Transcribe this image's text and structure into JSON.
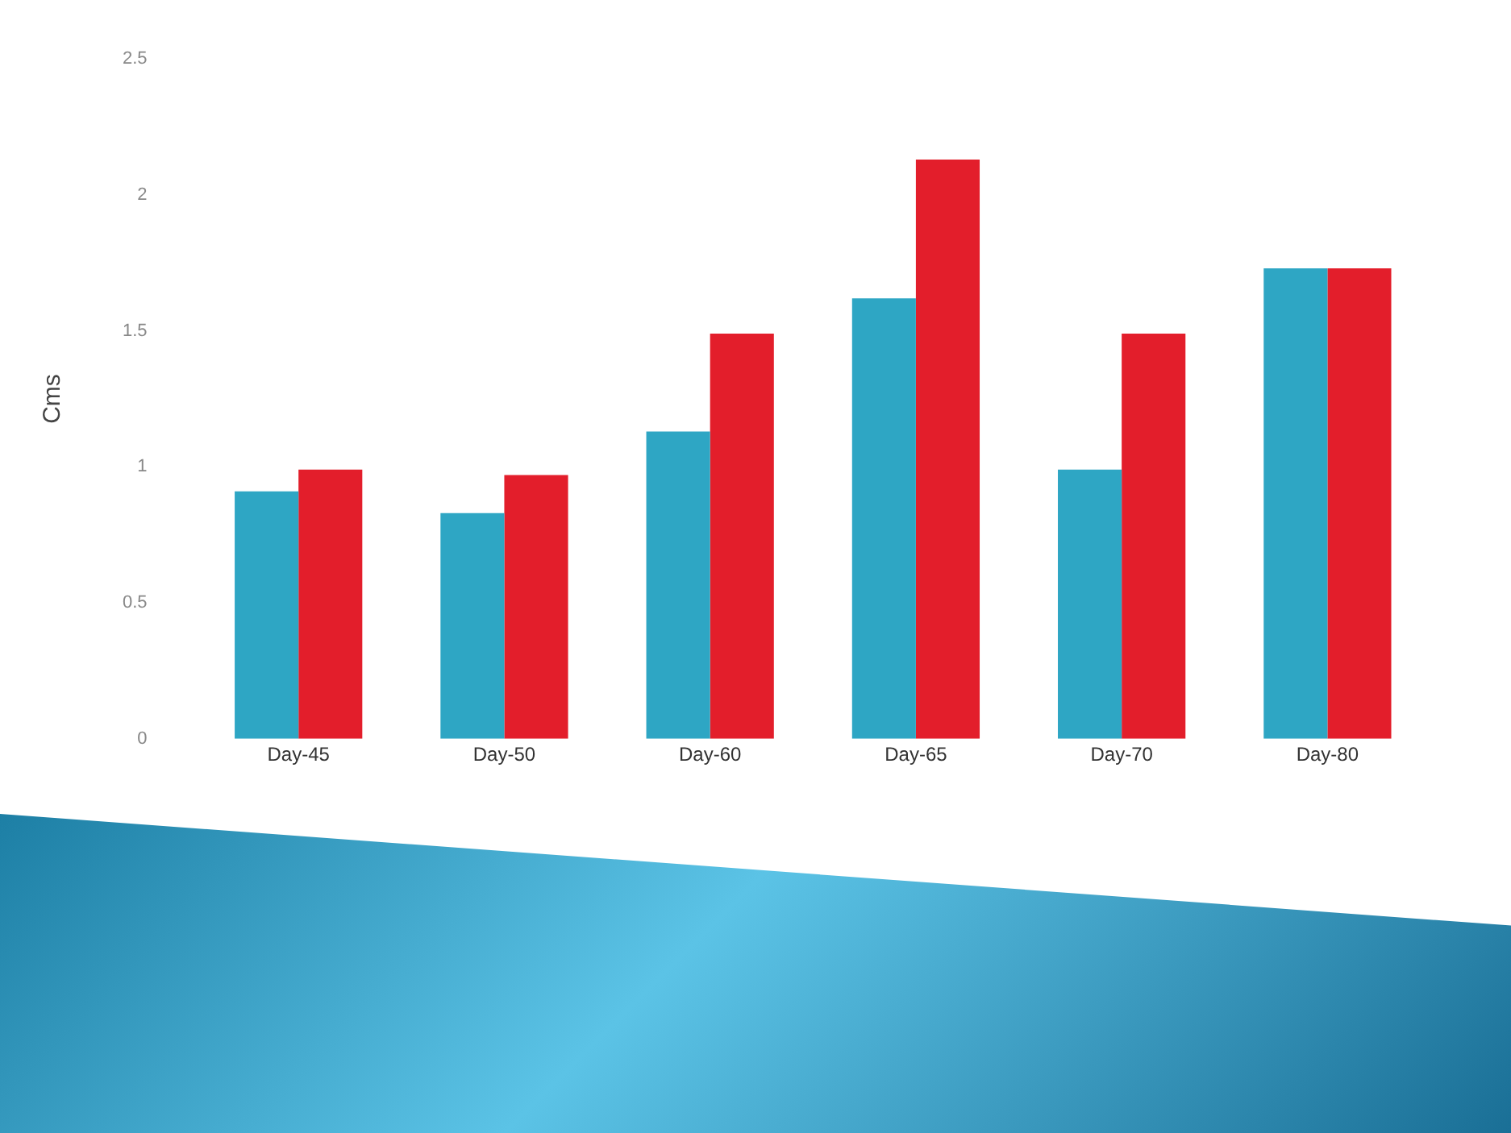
{
  "chart_data": {
    "type": "bar",
    "ylabel": "Cms",
    "categories": [
      "Day-45",
      "Day-50",
      "Day-60",
      "Day-65",
      "Day-70",
      "Day-80"
    ],
    "series": [
      {
        "color": "#2ea6c4",
        "values": [
          0.91,
          0.83,
          1.13,
          1.62,
          0.99,
          1.73
        ]
      },
      {
        "color": "#e31e2b",
        "values": [
          0.99,
          0.97,
          1.49,
          2.13,
          1.49,
          1.73
        ]
      }
    ],
    "ylim": [
      0,
      2.5
    ],
    "yticks": [
      0,
      0.5,
      1,
      1.5,
      2,
      2.5
    ],
    "grid": false,
    "legend": false
  }
}
